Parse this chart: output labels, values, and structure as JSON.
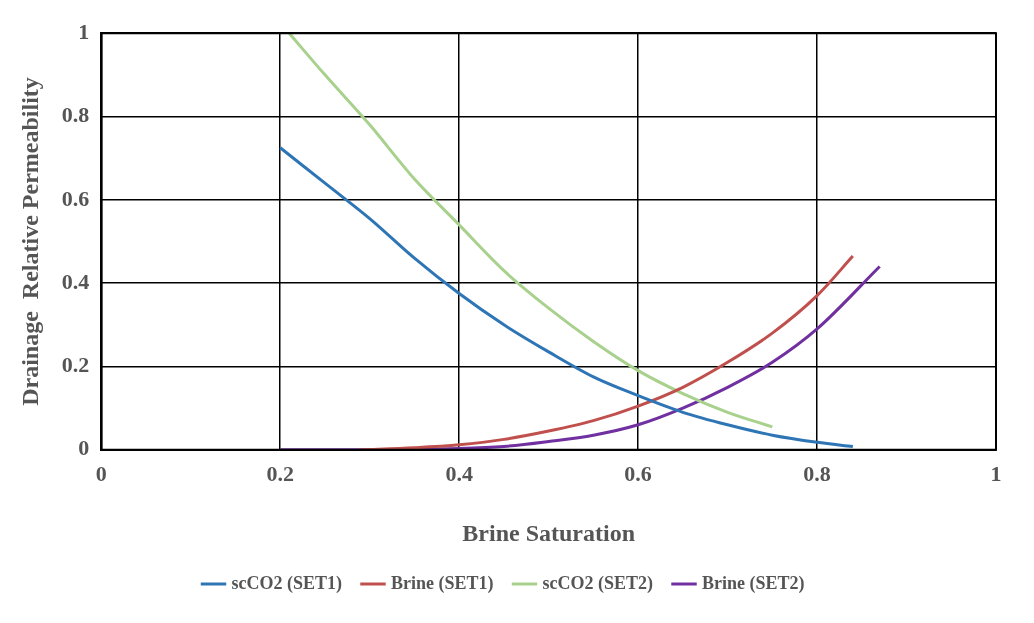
{
  "chart_data": {
    "type": "line",
    "xlabel": "Brine Saturation",
    "ylabel": "Drainage  Relative Permeability",
    "xlim": [
      0,
      1
    ],
    "ylim": [
      0,
      1
    ],
    "xticks": [
      0,
      0.2,
      0.4,
      0.6,
      0.8,
      1
    ],
    "yticks": [
      0,
      0.2,
      0.4,
      0.6,
      0.8,
      1
    ],
    "grid": true,
    "legend": "bottom",
    "marker": "none",
    "line_style": "solid",
    "series": [
      {
        "name": "scCO2 (SET1)",
        "color": "#2e75b6",
        "x": [
          0.2,
          0.25,
          0.3,
          0.35,
          0.4,
          0.45,
          0.5,
          0.55,
          0.6,
          0.65,
          0.7,
          0.75,
          0.8,
          0.84
        ],
        "values": [
          0.725,
          0.64,
          0.555,
          0.46,
          0.375,
          0.3,
          0.235,
          0.175,
          0.13,
          0.09,
          0.06,
          0.035,
          0.018,
          0.008
        ]
      },
      {
        "name": "Brine (SET1)",
        "color": "#c0504d",
        "x": [
          0.29,
          0.35,
          0.4,
          0.45,
          0.5,
          0.55,
          0.6,
          0.65,
          0.7,
          0.75,
          0.8,
          0.84
        ],
        "values": [
          0,
          0.005,
          0.012,
          0.025,
          0.045,
          0.07,
          0.105,
          0.15,
          0.21,
          0.28,
          0.37,
          0.465
        ]
      },
      {
        "name": "scCO2 (SET2)",
        "color": "#a9d18e",
        "x": [
          0.21,
          0.25,
          0.3,
          0.35,
          0.4,
          0.45,
          0.5,
          0.55,
          0.6,
          0.65,
          0.7,
          0.75
        ],
        "values": [
          1,
          0.9,
          0.78,
          0.65,
          0.54,
          0.43,
          0.34,
          0.26,
          0.19,
          0.135,
          0.09,
          0.055
        ]
      },
      {
        "name": "Brine (SET2)",
        "color": "#7030a0",
        "x": [
          0.2,
          0.3,
          0.4,
          0.45,
          0.5,
          0.55,
          0.6,
          0.65,
          0.7,
          0.75,
          0.8,
          0.87
        ],
        "values": [
          0,
          0,
          0.003,
          0.008,
          0.02,
          0.035,
          0.06,
          0.1,
          0.15,
          0.21,
          0.29,
          0.44
        ]
      }
    ]
  }
}
